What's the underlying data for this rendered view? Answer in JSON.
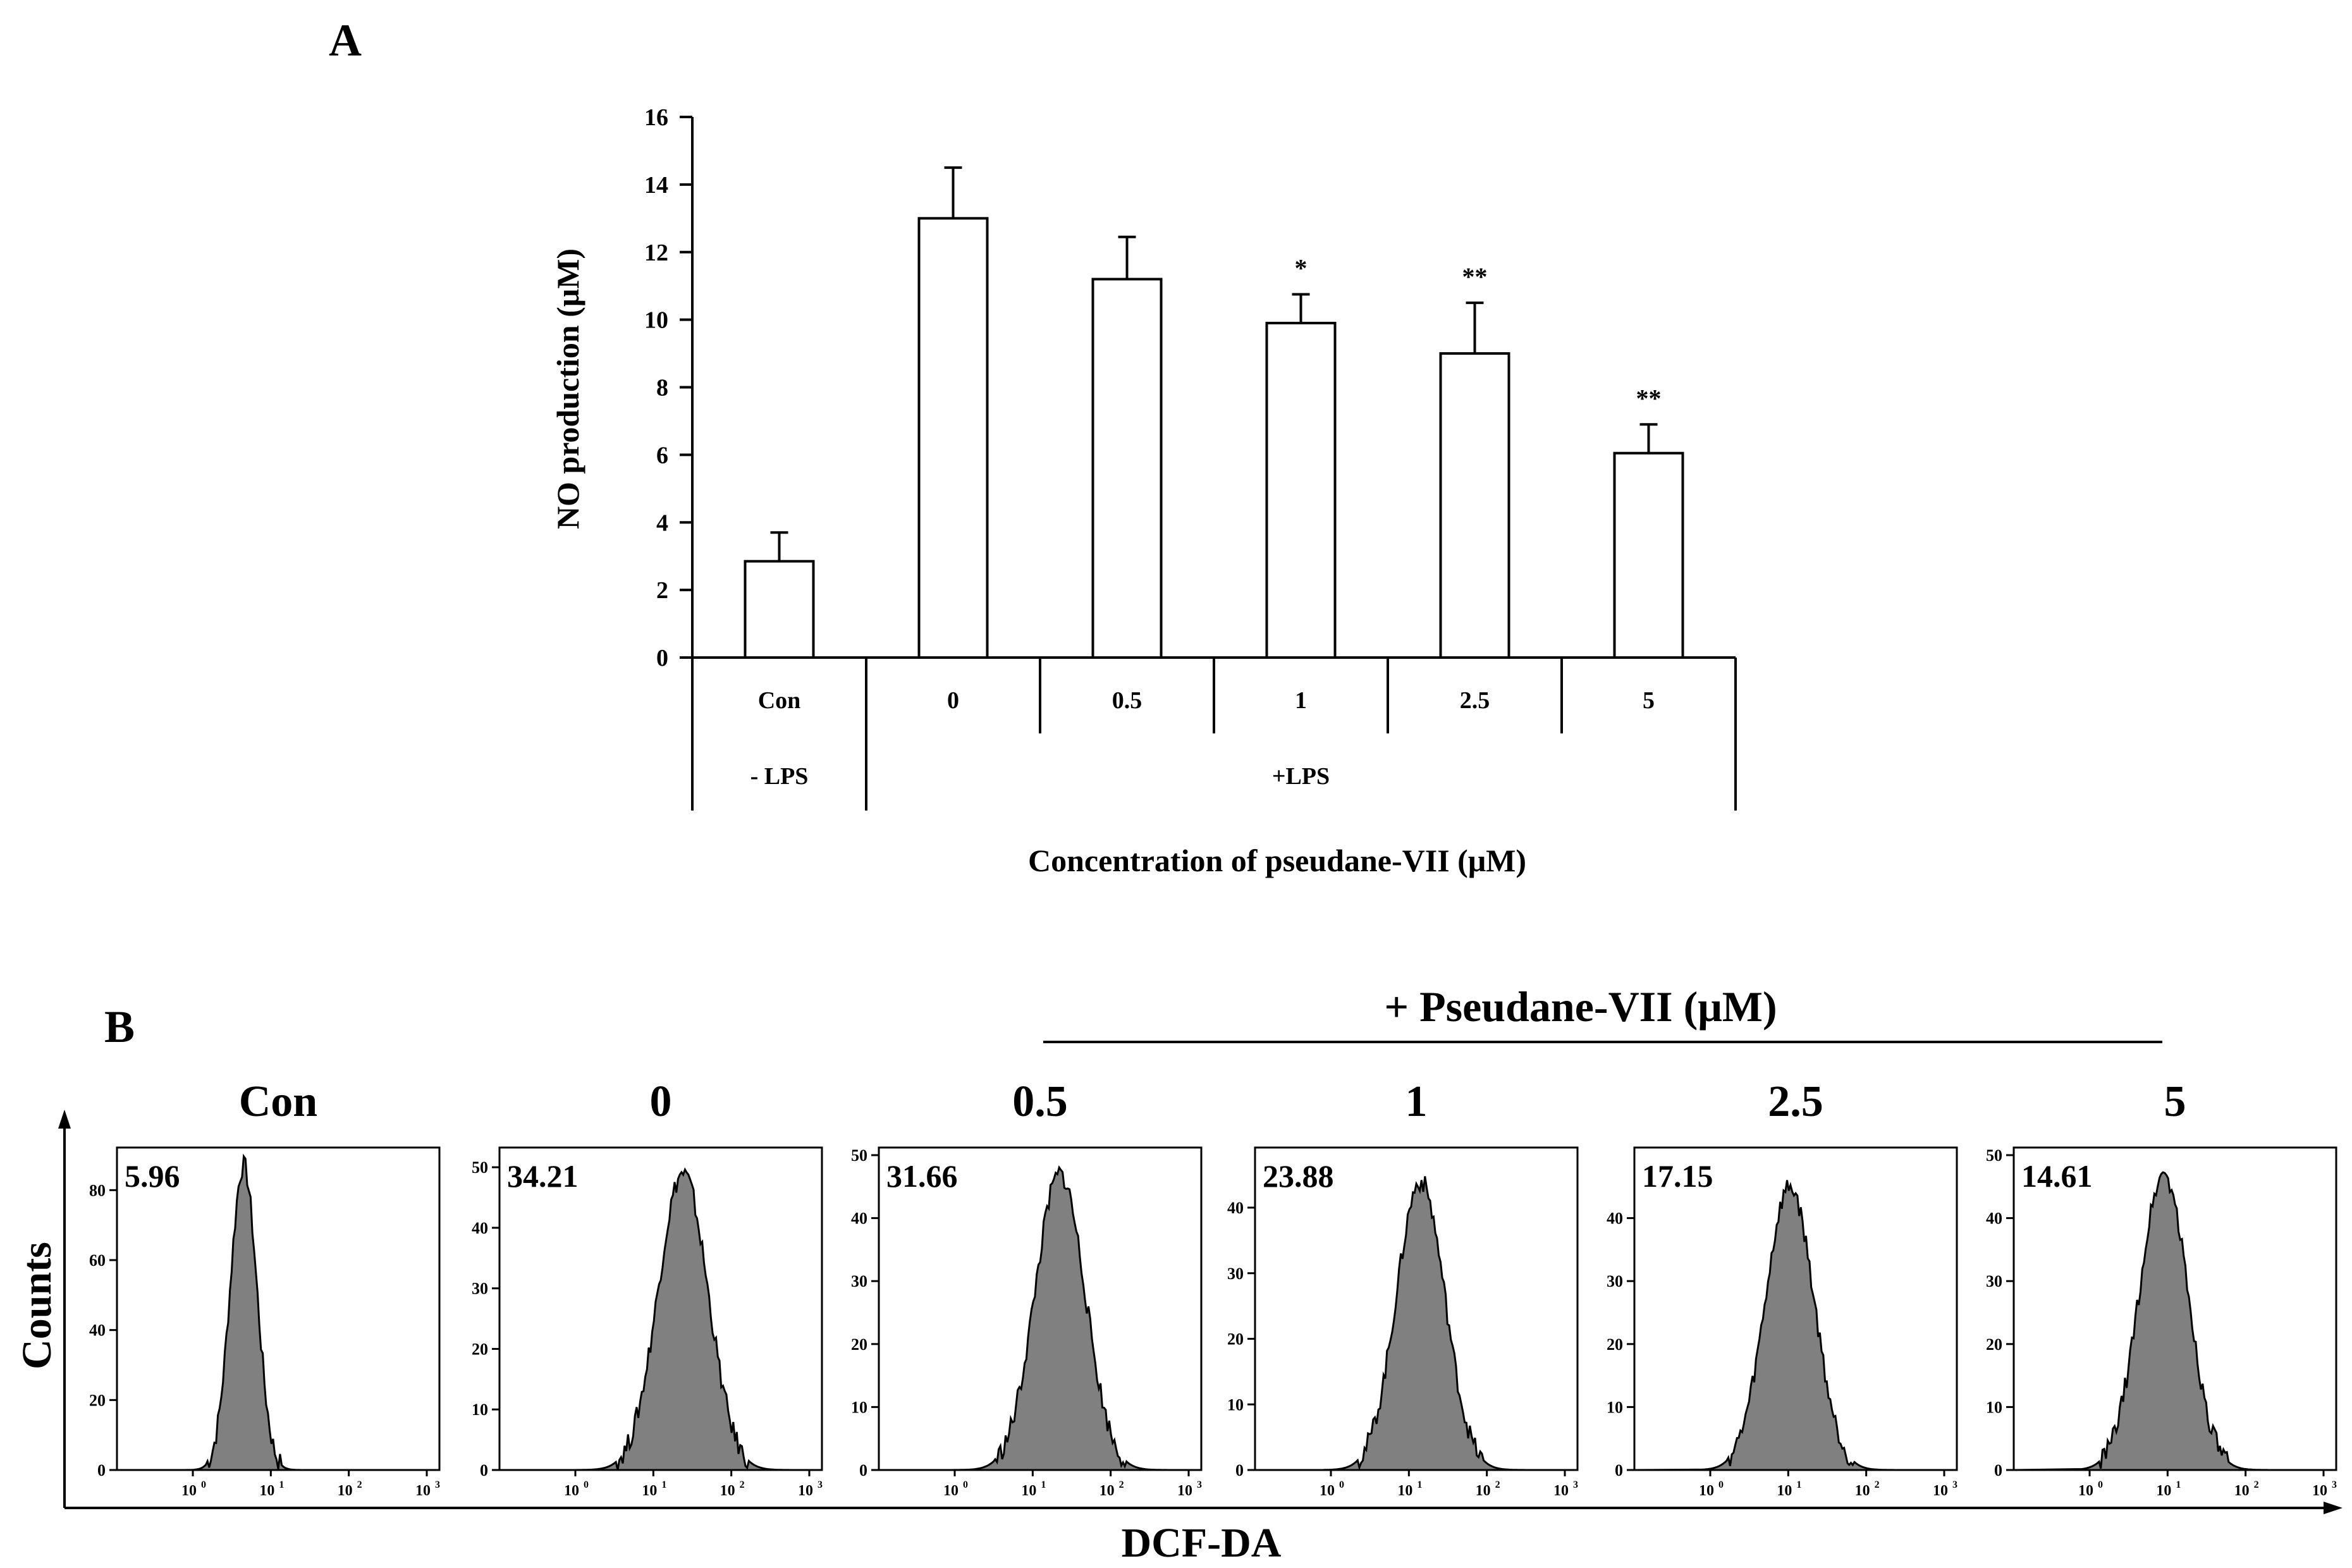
{
  "panel_a": {
    "label": "A"
  },
  "panel_b": {
    "label": "B"
  },
  "chart_data": [
    {
      "type": "bar",
      "panel": "A",
      "title": "",
      "ylabel": "NO production  (μM)",
      "xlabel": "Concentration  of pseudane-VII (μM)",
      "ylim": [
        0,
        16
      ],
      "yticks": [
        0,
        2,
        4,
        6,
        8,
        10,
        12,
        14,
        16
      ],
      "categories": [
        "Con",
        "0",
        "0.5",
        "1",
        "2.5",
        "5"
      ],
      "values": [
        2.85,
        13.0,
        11.2,
        9.9,
        9.0,
        6.05
      ],
      "errors": [
        0.85,
        1.5,
        1.25,
        0.85,
        1.5,
        0.85
      ],
      "significance": [
        "",
        "",
        "",
        "*",
        "**",
        "**"
      ],
      "groups": [
        {
          "label": "- LPS",
          "categories": [
            "Con"
          ]
        },
        {
          "label": "+LPS",
          "categories": [
            "0",
            "0.5",
            "1",
            "2.5",
            "5"
          ]
        }
      ]
    },
    {
      "type": "histogram",
      "panel": "B",
      "ylabel": "Counts",
      "xlabel": "DCF-DA",
      "treatment_label": "+ Pseudane-VII (μM)",
      "x_scale": "log",
      "x_ticks": [
        "10",
        "10",
        "10",
        "10"
      ],
      "x_tick_exponents": [
        "0",
        "1",
        "2",
        "3"
      ],
      "panels": [
        {
          "label": "Con",
          "value": "5.96",
          "ymax": 90,
          "yticks": [
            0,
            20,
            40,
            60,
            80
          ],
          "peak_log": 0.65,
          "sigma": 0.17,
          "peak_count": 87
        },
        {
          "label": "0",
          "value": "34.21",
          "ymax": 52,
          "yticks": [
            0,
            10,
            20,
            30,
            40,
            50
          ],
          "peak_log": 1.38,
          "sigma": 0.32,
          "peak_count": 49
        },
        {
          "label": "0.5",
          "value": "31.66",
          "ymax": 50,
          "yticks": [
            0,
            10,
            20,
            30,
            40,
            50
          ],
          "peak_log": 1.35,
          "sigma": 0.32,
          "peak_count": 47
        },
        {
          "label": "1",
          "value": "23.88",
          "ymax": 48,
          "yticks": [
            0,
            10,
            20,
            30,
            40
          ],
          "peak_log": 1.15,
          "sigma": 0.31,
          "peak_count": 44
        },
        {
          "label": "2.5",
          "value": "17.15",
          "ymax": 50,
          "yticks": [
            0,
            10,
            20,
            30,
            40
          ],
          "peak_log": 1.02,
          "sigma": 0.31,
          "peak_count": 45
        },
        {
          "label": "5",
          "value": "14.61",
          "ymax": 50,
          "yticks": [
            0,
            10,
            20,
            30,
            40,
            50
          ],
          "peak_log": 0.95,
          "sigma": 0.31,
          "peak_count": 47
        }
      ]
    }
  ]
}
